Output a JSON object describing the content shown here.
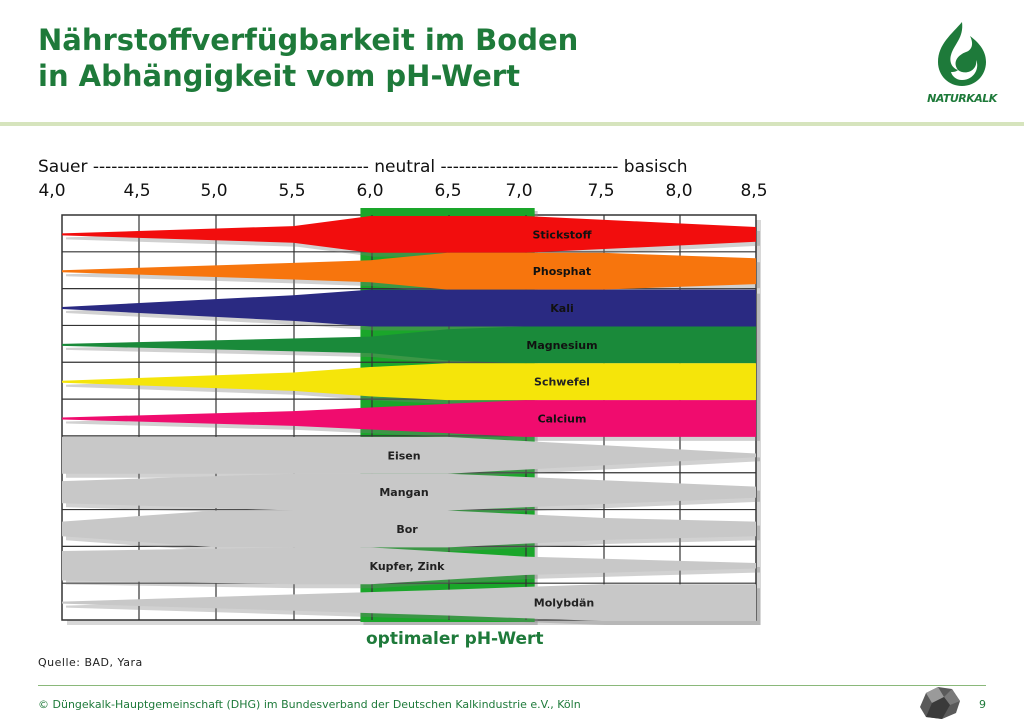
{
  "title": {
    "line1": "Nährstoffverfügbarkeit im Boden",
    "line2": "in Abhängigkeit vom pH-Wert"
  },
  "logo": {
    "text": "NATURKALK",
    "icon": "naturkalk-logo-icon",
    "color": "#1e7a3a"
  },
  "scale": {
    "label": "Sauer --------------------------------------------- neutral ----------------------------- basisch"
  },
  "chart_data": {
    "type": "range-band",
    "x_ticks": [
      "4,0",
      "4,5",
      "5,0",
      "5,5",
      "6,0",
      "6,5",
      "7,0",
      "7,5",
      "8,0",
      "8,5"
    ],
    "xlim": [
      4.0,
      8.5
    ],
    "optimal_range": [
      6.0,
      7.0
    ],
    "optimal_label": "optimaler pH-Wert",
    "optimal_color": "#1aa62a",
    "nutrients": [
      {
        "name": "Stickstoff",
        "color": "#f20d0d",
        "profile": [
          [
            4.0,
            0.05
          ],
          [
            5.5,
            0.45
          ],
          [
            6.0,
            1
          ],
          [
            7.0,
            1
          ],
          [
            8.0,
            0.6
          ],
          [
            8.5,
            0.4
          ]
        ]
      },
      {
        "name": "Phosphat",
        "color": "#f7750d",
        "profile": [
          [
            4.0,
            0.05
          ],
          [
            5.5,
            0.45
          ],
          [
            6.0,
            0.6
          ],
          [
            6.5,
            1
          ],
          [
            7.5,
            1
          ],
          [
            8.5,
            0.7
          ]
        ]
      },
      {
        "name": "Kali",
        "color": "#2a2a82",
        "profile": [
          [
            4.0,
            0.05
          ],
          [
            5.5,
            0.7
          ],
          [
            6.0,
            1
          ],
          [
            8.5,
            1
          ]
        ]
      },
      {
        "name": "Magnesium",
        "color": "#1a8a3a",
        "profile": [
          [
            4.0,
            0.05
          ],
          [
            6.0,
            0.45
          ],
          [
            6.5,
            0.85
          ],
          [
            7.0,
            1
          ],
          [
            8.5,
            1
          ]
        ]
      },
      {
        "name": "Schwefel",
        "color": "#f5e50a",
        "profile": [
          [
            4.0,
            0.05
          ],
          [
            5.5,
            0.5
          ],
          [
            6.0,
            0.8
          ],
          [
            6.5,
            1
          ],
          [
            8.5,
            1
          ]
        ]
      },
      {
        "name": "Calcium",
        "color": "#f00c6e",
        "profile": [
          [
            4.0,
            0.05
          ],
          [
            5.5,
            0.4
          ],
          [
            6.0,
            0.6
          ],
          [
            7.0,
            1
          ],
          [
            8.5,
            1
          ]
        ]
      },
      {
        "name": "Eisen",
        "color": "#c8c8c8",
        "profile": [
          [
            4.0,
            1
          ],
          [
            6.5,
            1
          ],
          [
            8.5,
            0.1
          ]
        ]
      },
      {
        "name": "Mangan",
        "color": "#c8c8c8",
        "profile": [
          [
            4.0,
            0.6
          ],
          [
            5.5,
            1
          ],
          [
            6.5,
            1
          ],
          [
            8.5,
            0.3
          ]
        ]
      },
      {
        "name": "Bor",
        "color": "#c8c8c8",
        "profile": [
          [
            4.0,
            0.4
          ],
          [
            5.0,
            1
          ],
          [
            6.5,
            1
          ],
          [
            7.5,
            0.6
          ],
          [
            8.5,
            0.4
          ]
        ]
      },
      {
        "name": "Kupfer, Zink",
        "color": "#c8c8c8",
        "profile": [
          [
            4.0,
            0.8
          ],
          [
            5.5,
            1
          ],
          [
            6.0,
            1
          ],
          [
            7.0,
            0.5
          ],
          [
            8.5,
            0.15
          ]
        ]
      },
      {
        "name": "Molybdän",
        "color": "#c8c8c8",
        "profile": [
          [
            4.0,
            0.05
          ],
          [
            6.5,
            0.7
          ],
          [
            7.5,
            1
          ],
          [
            8.5,
            1
          ]
        ]
      }
    ]
  },
  "source": "Quelle: BAD, Yara",
  "footer": {
    "text": "© Düngekalk-Hauptgemeinschaft (DHG) im Bundesverband der Deutschen Kalkindustrie e.V., Köln",
    "page": "9"
  }
}
